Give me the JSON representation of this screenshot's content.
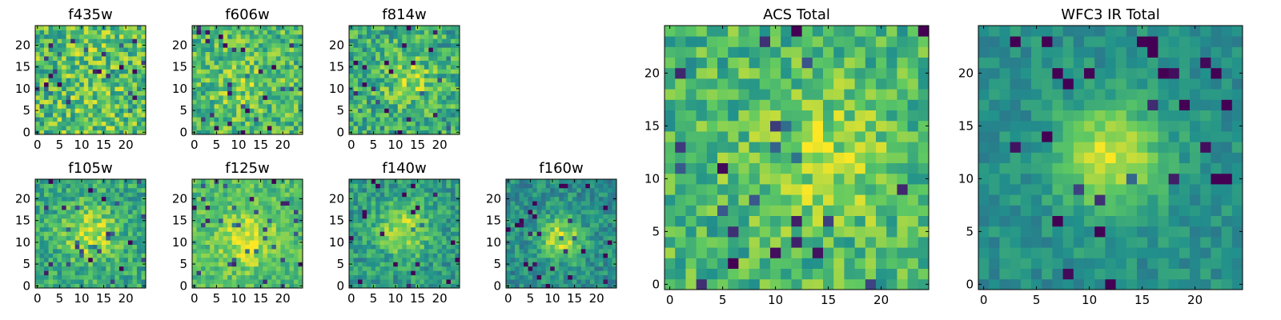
{
  "figure": {
    "colormap": "viridis",
    "colormap_stops": [
      "#440154",
      "#3b528b",
      "#21918c",
      "#5ec962",
      "#fde725"
    ]
  },
  "chart_data": [
    {
      "type": "heatmap",
      "title": "f435w",
      "grid": false,
      "cols": 25,
      "rows": 25,
      "xlim": [
        -0.5,
        24.5
      ],
      "ylim": [
        -0.5,
        24.5
      ],
      "xticks": [
        0,
        5,
        10,
        15,
        20
      ],
      "yticks": [
        0,
        5,
        10,
        15,
        20
      ],
      "peak": {
        "x": 12,
        "y": 12,
        "amp": 0.05,
        "sigma": 6
      },
      "noise": 0.25,
      "base": 0.7
    },
    {
      "type": "heatmap",
      "title": "f606w",
      "grid": false,
      "cols": 25,
      "rows": 25,
      "xlim": [
        -0.5,
        24.5
      ],
      "ylim": [
        -0.5,
        24.5
      ],
      "xticks": [
        0,
        5,
        10,
        15,
        20
      ],
      "yticks": [
        0,
        5,
        10,
        15,
        20
      ],
      "peak": {
        "x": 12,
        "y": 10,
        "amp": 0.1,
        "sigma": 5
      },
      "noise": 0.22,
      "base": 0.68
    },
    {
      "type": "heatmap",
      "title": "f814w",
      "grid": false,
      "cols": 25,
      "rows": 25,
      "xlim": [
        -0.5,
        24.5
      ],
      "ylim": [
        -0.5,
        24.5
      ],
      "xticks": [
        0,
        5,
        10,
        15,
        20
      ],
      "yticks": [
        0,
        5,
        10,
        15,
        20
      ],
      "peak": {
        "x": 13,
        "y": 12,
        "amp": 0.2,
        "sigma": 4
      },
      "noise": 0.22,
      "base": 0.62
    },
    {
      "type": "heatmap",
      "title": "f105w",
      "grid": false,
      "cols": 25,
      "rows": 25,
      "xlim": [
        -0.5,
        24.5
      ],
      "ylim": [
        -0.5,
        24.5
      ],
      "xticks": [
        0,
        5,
        10,
        15,
        20
      ],
      "yticks": [
        0,
        5,
        10,
        15,
        20
      ],
      "peak": {
        "x": 12,
        "y": 12,
        "amp": 0.3,
        "sigma": 4.5
      },
      "noise": 0.18,
      "base": 0.6
    },
    {
      "type": "heatmap",
      "title": "f125w",
      "grid": false,
      "cols": 25,
      "rows": 25,
      "xlim": [
        -0.5,
        24.5
      ],
      "ylim": [
        -0.5,
        24.5
      ],
      "xticks": [
        0,
        5,
        10,
        15,
        20
      ],
      "yticks": [
        0,
        5,
        10,
        15,
        20
      ],
      "peak": {
        "x": 12,
        "y": 11,
        "amp": 0.25,
        "sigma": 5
      },
      "noise": 0.15,
      "base": 0.68
    },
    {
      "type": "heatmap",
      "title": "f140w",
      "grid": false,
      "cols": 25,
      "rows": 25,
      "xlim": [
        -0.5,
        24.5
      ],
      "ylim": [
        -0.5,
        24.5
      ],
      "xticks": [
        0,
        5,
        10,
        15,
        20
      ],
      "yticks": [
        0,
        5,
        10,
        15,
        20
      ],
      "peak": {
        "x": 12,
        "y": 13,
        "amp": 0.35,
        "sigma": 4
      },
      "noise": 0.16,
      "base": 0.55
    },
    {
      "type": "heatmap",
      "title": "f160w",
      "grid": false,
      "cols": 25,
      "rows": 25,
      "xlim": [
        -0.5,
        24.5
      ],
      "ylim": [
        -0.5,
        24.5
      ],
      "xticks": [
        0,
        5,
        10,
        15,
        20
      ],
      "yticks": [
        0,
        5,
        10,
        15,
        20
      ],
      "peak": {
        "x": 12,
        "y": 11,
        "amp": 0.4,
        "sigma": 3.5
      },
      "noise": 0.15,
      "base": 0.5
    },
    {
      "type": "heatmap",
      "title": "ACS Total",
      "grid": false,
      "cols": 25,
      "rows": 25,
      "xlim": [
        -0.5,
        24.5
      ],
      "ylim": [
        -0.5,
        24.5
      ],
      "xticks": [
        0,
        5,
        10,
        15,
        20
      ],
      "yticks": [
        0,
        5,
        10,
        15,
        20
      ],
      "peak": {
        "x": 14,
        "y": 12,
        "amp": 0.2,
        "sigma": 5
      },
      "noise": 0.2,
      "base": 0.66
    },
    {
      "type": "heatmap",
      "title": "WFC3 IR Total",
      "grid": false,
      "cols": 25,
      "rows": 25,
      "xlim": [
        -0.5,
        24.5
      ],
      "ylim": [
        -0.5,
        24.5
      ],
      "xticks": [
        0,
        5,
        10,
        15,
        20
      ],
      "yticks": [
        0,
        5,
        10,
        15,
        20
      ],
      "peak": {
        "x": 12,
        "y": 12,
        "amp": 0.45,
        "sigma": 3.5
      },
      "noise": 0.1,
      "base": 0.5
    }
  ]
}
